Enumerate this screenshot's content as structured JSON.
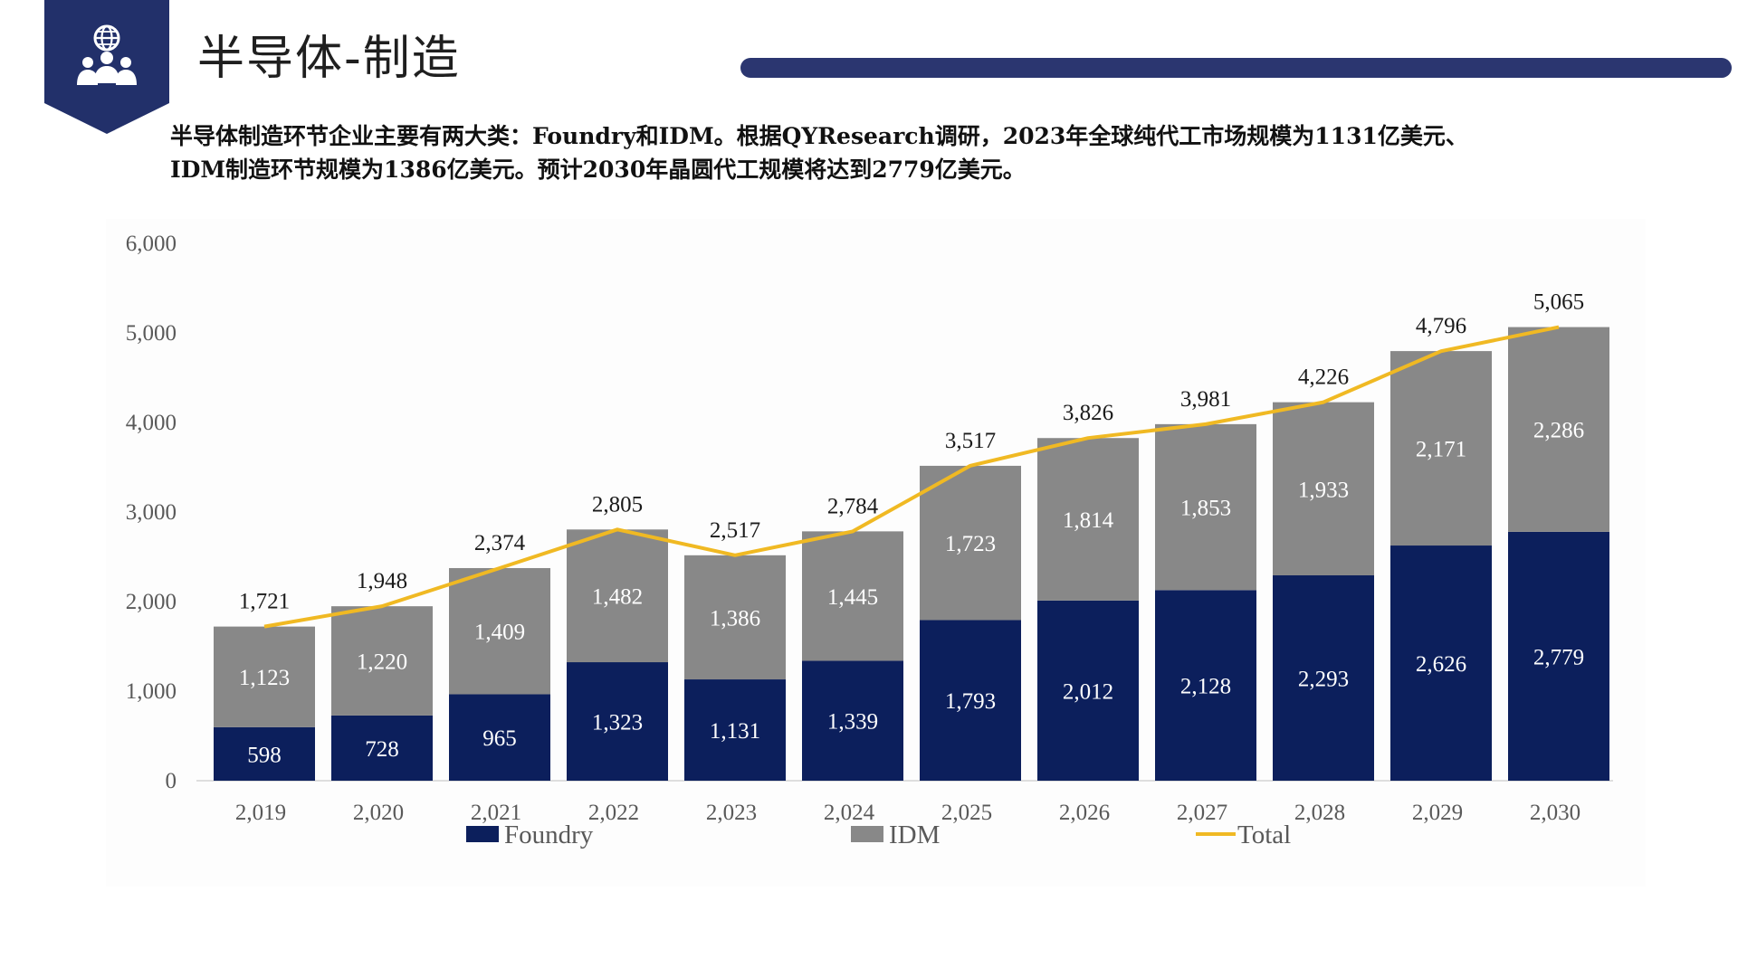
{
  "header": {
    "title": "半导体-制造"
  },
  "intro": {
    "line1": "半导体制造环节企业主要有两大类：Foundry和IDM。根据QYResearch调研，2023年全球纯代工市场规模为1131亿美元、",
    "line2": "IDM制造环节规模为1386亿美元。预计2030年晶圆代工规模将达到2779亿美元。"
  },
  "colors": {
    "brand_navy": "#22306a",
    "foundry": "#0c1f5c",
    "idm": "#888888",
    "total": "#f0b923"
  },
  "icons": {
    "logo": "globe-people-icon"
  },
  "chart_data": {
    "type": "bar",
    "stacked": true,
    "categories": [
      "2,019",
      "2,020",
      "2,021",
      "2,022",
      "2,023",
      "2,024",
      "2,025",
      "2,026",
      "2,027",
      "2,028",
      "2,029",
      "2,030"
    ],
    "ylim": [
      0,
      6000
    ],
    "yticks": [
      "0",
      "1,000",
      "2,000",
      "3,000",
      "4,000",
      "5,000",
      "6,000"
    ],
    "ytick_values": [
      0,
      1000,
      2000,
      3000,
      4000,
      5000,
      6000
    ],
    "grid": false,
    "legend_position": "bottom",
    "series": [
      {
        "name": "Foundry",
        "kind": "bar",
        "values": [
          598,
          728,
          965,
          1323,
          1131,
          1339,
          1793,
          2012,
          2128,
          2293,
          2626,
          2779
        ],
        "labels": [
          "598",
          "728",
          "965",
          "1,323",
          "1,131",
          "1,339",
          "1,793",
          "2,012",
          "2,128",
          "2,293",
          "2,626",
          "2,779"
        ]
      },
      {
        "name": "IDM",
        "kind": "bar",
        "values": [
          1123,
          1220,
          1409,
          1482,
          1386,
          1445,
          1723,
          1814,
          1853,
          1933,
          2171,
          2286
        ],
        "labels": [
          "1,123",
          "1,220",
          "1,409",
          "1,482",
          "1,386",
          "1,445",
          "1,723",
          "1,814",
          "1,853",
          "1,933",
          "2,171",
          "2,286"
        ]
      },
      {
        "name": "Total",
        "kind": "line",
        "values": [
          1721,
          1948,
          2374,
          2805,
          2517,
          2784,
          3517,
          3826,
          3981,
          4226,
          4796,
          5065
        ],
        "labels": [
          "1,721",
          "1,948",
          "2,374",
          "2,805",
          "2,517",
          "2,784",
          "3,517",
          "3,826",
          "3,981",
          "4,226",
          "4,796",
          "5,065"
        ]
      }
    ]
  }
}
